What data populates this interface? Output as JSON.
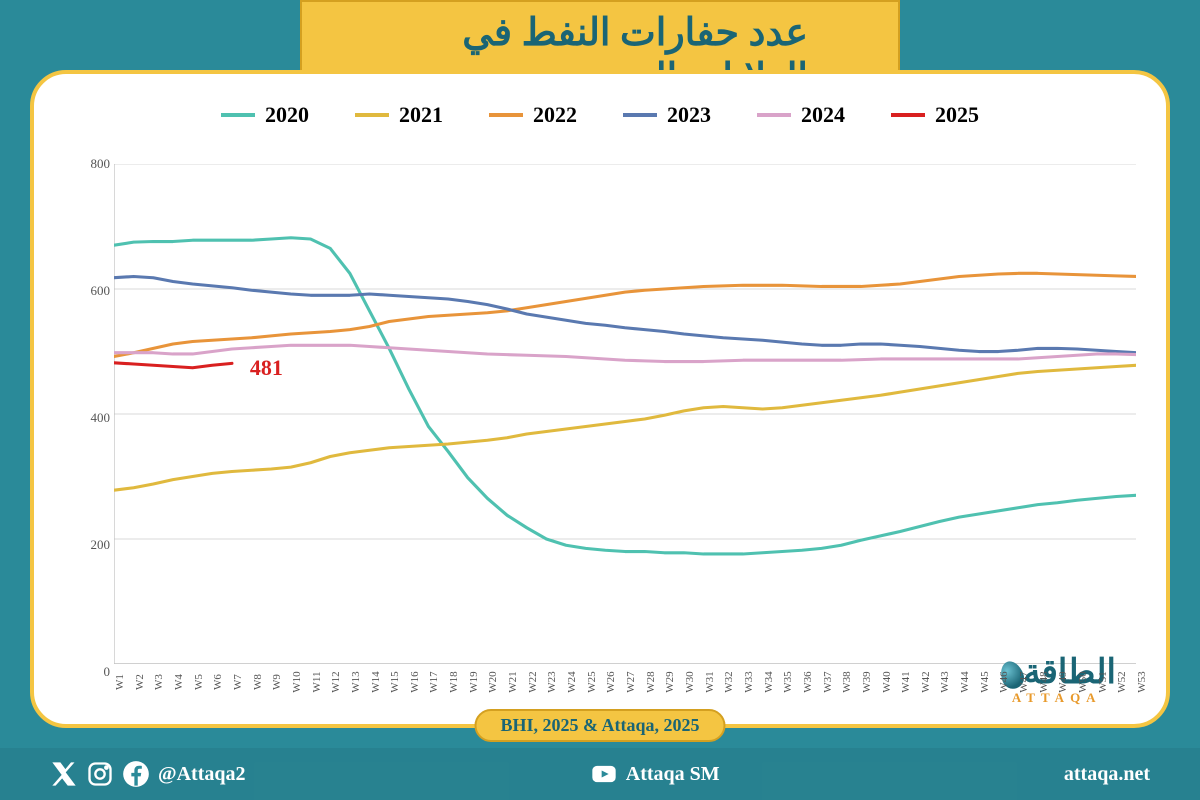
{
  "title": "عدد حفارات النفط في الولايات المتحدة",
  "background_color": "#2a8a99",
  "card_border_color": "#f4c542",
  "source_text": "BHI, 2025 & Attaqa, 2025",
  "logo": {
    "arabic": "الطاقة",
    "latin": "ATTAQA"
  },
  "footer": {
    "handle": "@Attaqa2",
    "youtube": "Attaqa SM",
    "website": "attaqa.net"
  },
  "chart": {
    "type": "line",
    "ylim": [
      0,
      800
    ],
    "ytick_step": 200,
    "yticks": [
      0,
      200,
      400,
      600,
      800
    ],
    "x_count": 53,
    "x_prefix": "W",
    "grid_color": "#d9d9d9",
    "axis_color": "#bfbfbf",
    "tick_fontsize": 12,
    "legend_fontsize": 22,
    "line_width": 3,
    "callout": {
      "value": "481",
      "color": "#d92020",
      "week": 7,
      "y": 481
    },
    "series": [
      {
        "name": "2020",
        "color": "#4fc1b0",
        "values": [
          670,
          675,
          676,
          676,
          678,
          678,
          678,
          678,
          680,
          682,
          680,
          665,
          625,
          565,
          505,
          440,
          380,
          340,
          298,
          265,
          238,
          218,
          200,
          190,
          185,
          182,
          180,
          180,
          178,
          178,
          176,
          176,
          176,
          178,
          180,
          182,
          185,
          190,
          198,
          205,
          212,
          220,
          228,
          235,
          240,
          245,
          250,
          255,
          258,
          262,
          265,
          268,
          270
        ]
      },
      {
        "name": "2021",
        "color": "#e0b93e",
        "values": [
          278,
          282,
          288,
          295,
          300,
          305,
          308,
          310,
          312,
          315,
          322,
          332,
          338,
          342,
          346,
          348,
          350,
          352,
          355,
          358,
          362,
          368,
          372,
          376,
          380,
          384,
          388,
          392,
          398,
          405,
          410,
          412,
          410,
          408,
          410,
          414,
          418,
          422,
          426,
          430,
          435,
          440,
          445,
          450,
          455,
          460,
          465,
          468,
          470,
          472,
          474,
          476,
          478
        ]
      },
      {
        "name": "2022",
        "color": "#e8943a",
        "values": [
          492,
          498,
          505,
          512,
          516,
          518,
          520,
          522,
          525,
          528,
          530,
          532,
          535,
          540,
          548,
          552,
          556,
          558,
          560,
          562,
          565,
          570,
          575,
          580,
          585,
          590,
          595,
          598,
          600,
          602,
          604,
          605,
          606,
          606,
          606,
          605,
          604,
          604,
          604,
          606,
          608,
          612,
          616,
          620,
          622,
          624,
          625,
          625,
          624,
          623,
          622,
          621,
          620
        ]
      },
      {
        "name": "2023",
        "color": "#5a79b0",
        "values": [
          618,
          620,
          618,
          612,
          608,
          605,
          602,
          598,
          595,
          592,
          590,
          590,
          590,
          592,
          590,
          588,
          586,
          584,
          580,
          575,
          568,
          560,
          555,
          550,
          545,
          542,
          538,
          535,
          532,
          528,
          525,
          522,
          520,
          518,
          515,
          512,
          510,
          510,
          512,
          512,
          510,
          508,
          505,
          502,
          500,
          500,
          502,
          505,
          505,
          504,
          502,
          500,
          498
        ]
      },
      {
        "name": "2024",
        "color": "#d9a3c9",
        "values": [
          498,
          498,
          498,
          496,
          496,
          500,
          504,
          506,
          508,
          510,
          510,
          510,
          510,
          508,
          506,
          504,
          502,
          500,
          498,
          496,
          495,
          494,
          493,
          492,
          490,
          488,
          486,
          485,
          484,
          484,
          484,
          485,
          486,
          486,
          486,
          486,
          486,
          486,
          487,
          488,
          488,
          488,
          488,
          488,
          488,
          488,
          488,
          490,
          492,
          494,
          496,
          496,
          495
        ]
      },
      {
        "name": "2025",
        "color": "#d92020",
        "values": [
          482,
          480,
          478,
          476,
          474,
          478,
          481
        ]
      }
    ]
  }
}
